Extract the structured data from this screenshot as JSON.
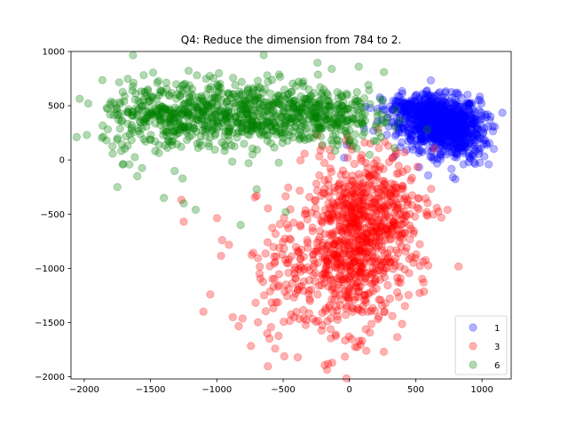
{
  "chart_data": {
    "type": "scatter",
    "title": "Q4: Reduce the dimension from 784 to 2.",
    "xlabel": "",
    "ylabel": "",
    "xlim": [
      -2100,
      1220
    ],
    "ylim": [
      -2020,
      1000
    ],
    "xticks": [
      -2000,
      -1500,
      -1000,
      -500,
      0,
      500,
      1000
    ],
    "yticks": [
      -2000,
      -1500,
      -1000,
      -500,
      0,
      500,
      1000
    ],
    "grid": false,
    "legend_position": "bottom-right",
    "series": [
      {
        "name": "1",
        "color": "#0000ff",
        "alpha": 0.3,
        "n_points": 1000,
        "cloud": [
          {
            "cx": 680,
            "cy": 340,
            "sx": 150,
            "sy": 120,
            "w": 0.6
          },
          {
            "cx": 820,
            "cy": 250,
            "sx": 110,
            "sy": 150,
            "w": 0.25
          },
          {
            "cx": 480,
            "cy": 460,
            "sx": 120,
            "sy": 80,
            "w": 0.15
          }
        ],
        "sample_points": [
          [
            560,
            600
          ],
          [
            700,
            580
          ],
          [
            860,
            420
          ],
          [
            940,
            240
          ],
          [
            1050,
            -40
          ],
          [
            900,
            60
          ],
          [
            780,
            -160
          ],
          [
            620,
            80
          ],
          [
            400,
            300
          ],
          [
            300,
            420
          ],
          [
            180,
            270
          ],
          [
            -40,
            20
          ],
          [
            -20,
            140
          ],
          [
            110,
            290
          ],
          [
            460,
            190
          ]
        ]
      },
      {
        "name": "3",
        "color": "#ff0000",
        "alpha": 0.3,
        "n_points": 1000,
        "cloud": [
          {
            "cx": 60,
            "cy": -820,
            "sx": 180,
            "sy": 380,
            "w": 0.55
          },
          {
            "cx": 200,
            "cy": -420,
            "sx": 220,
            "sy": 260,
            "w": 0.25
          },
          {
            "cx": -320,
            "cy": -1000,
            "sx": 280,
            "sy": 300,
            "w": 0.2
          }
        ],
        "sample_points": [
          [
            -1050,
            -1240
          ],
          [
            -960,
            -740
          ],
          [
            -1250,
            -570
          ],
          [
            -560,
            -1740
          ],
          [
            -160,
            -1880
          ],
          [
            -130,
            -1870
          ],
          [
            -390,
            -1820
          ],
          [
            560,
            -1130
          ],
          [
            740,
            -460
          ],
          [
            350,
            80
          ],
          [
            -240,
            230
          ],
          [
            160,
            150
          ],
          [
            -620,
            -1600
          ],
          [
            -880,
            -1450
          ],
          [
            -700,
            -330
          ]
        ]
      },
      {
        "name": "6",
        "color": "#008000",
        "alpha": 0.3,
        "n_points": 1000,
        "cloud": [
          {
            "cx": -800,
            "cy": 430,
            "sx": 420,
            "sy": 150,
            "w": 0.65
          },
          {
            "cx": -1400,
            "cy": 360,
            "sx": 230,
            "sy": 170,
            "w": 0.2
          },
          {
            "cx": -150,
            "cy": 400,
            "sx": 220,
            "sy": 150,
            "w": 0.15
          }
        ],
        "sample_points": [
          [
            -1970,
            520
          ],
          [
            -1980,
            230
          ],
          [
            -1750,
            -250
          ],
          [
            -1600,
            -150
          ],
          [
            -1400,
            -350
          ],
          [
            -1160,
            -460
          ],
          [
            -1250,
            -400
          ],
          [
            -820,
            -600
          ],
          [
            -700,
            -270
          ],
          [
            -480,
            -480
          ],
          [
            70,
            860
          ],
          [
            260,
            810
          ],
          [
            340,
            110
          ],
          [
            -620,
            780
          ],
          [
            -1150,
            780
          ]
        ]
      }
    ]
  }
}
